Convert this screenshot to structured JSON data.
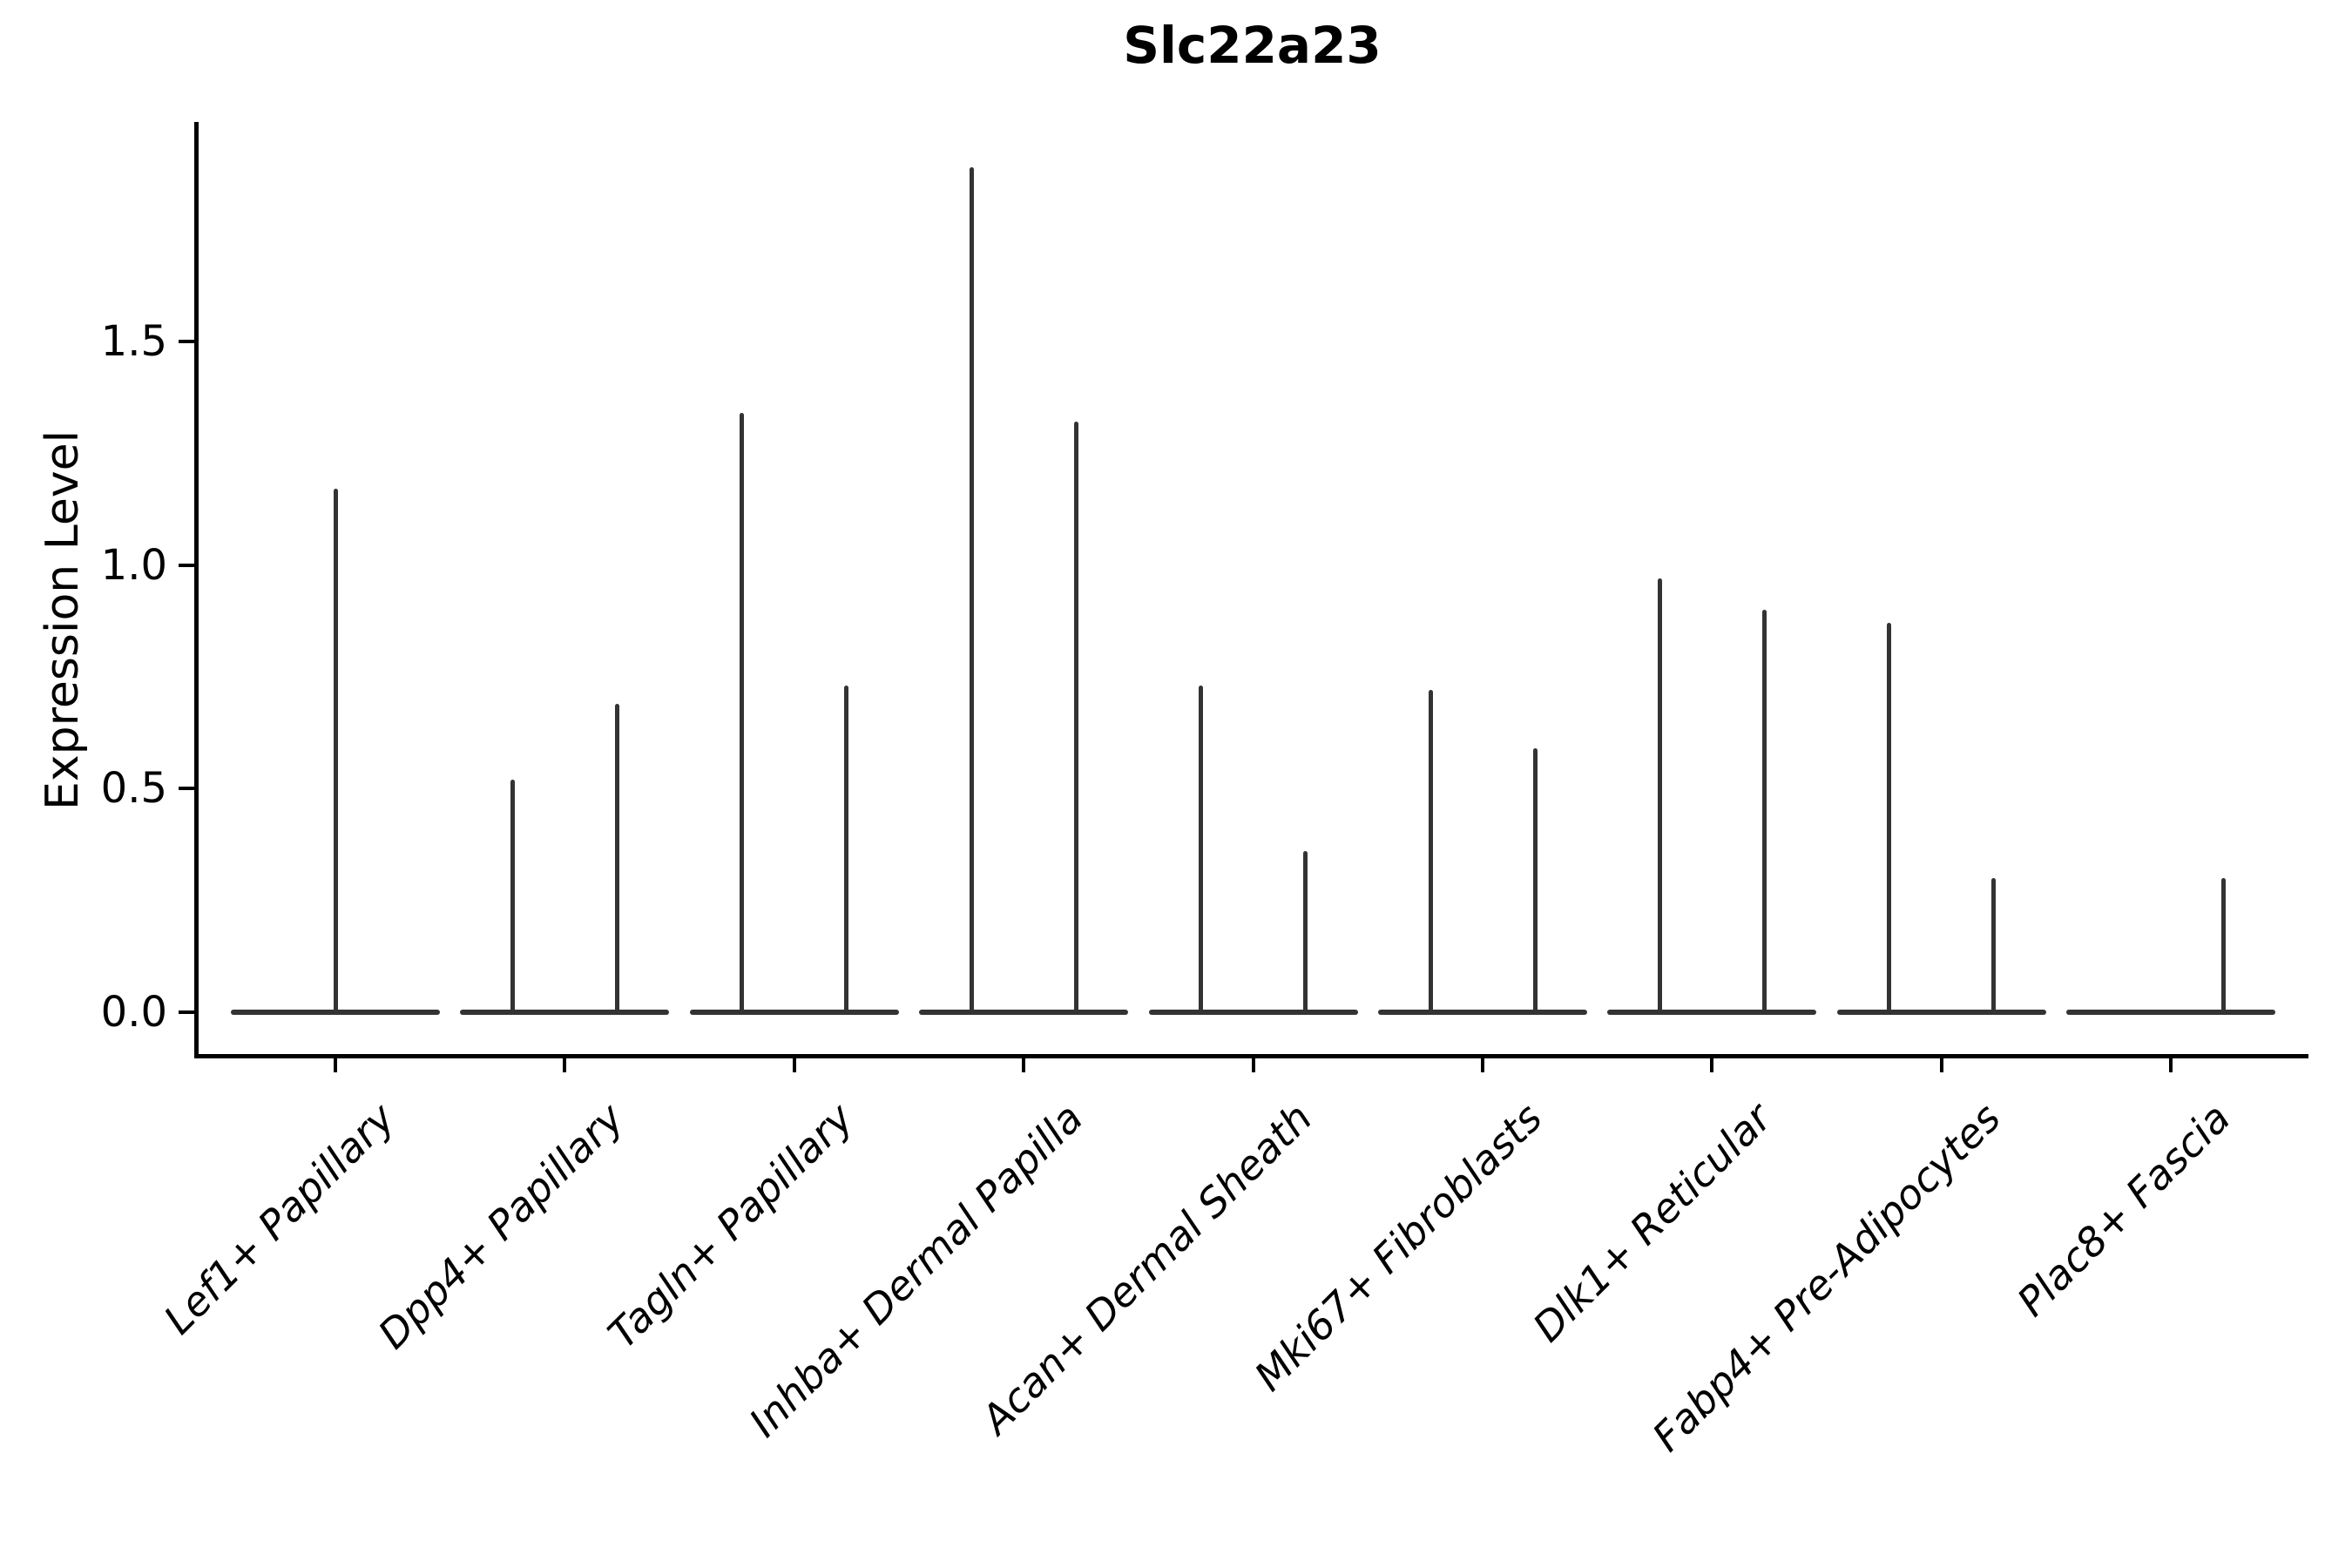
{
  "figure": {
    "title": "Slc22a23",
    "background": "#ffffff"
  },
  "chart_data": {
    "type": "violin",
    "title": "Slc22a23",
    "xlabel": "",
    "ylabel": "Expression Level",
    "ylim": [
      -0.07,
      1.99
    ],
    "yticks": [
      0.0,
      0.5,
      1.0,
      1.5
    ],
    "ytick_labels": [
      "0.0",
      "0.5",
      "1.0",
      "1.5"
    ],
    "grid": false,
    "legend": "none",
    "line_color": "#333333",
    "axis_color": "#000000",
    "categories": [
      "Lef1+ Papillary",
      "Dpp4+ Papillary",
      "Tagln+ Papillary",
      "Inhba+ Dermal Papilla",
      "Acan+ Dermal Sheath",
      "Mki67+ Fibroblasts",
      "Dlk1+ Reticular",
      "Fabp4+ Pre-Adipocytes",
      "Plac8+ Fascia"
    ],
    "violins": [
      {
        "category": "Lef1+ Papillary",
        "spikes": [
          {
            "position": "center",
            "max": 1.17
          }
        ]
      },
      {
        "category": "Dpp4+ Papillary",
        "spikes": [
          {
            "position": "left",
            "max": 0.52
          },
          {
            "position": "right",
            "max": 0.69
          }
        ]
      },
      {
        "category": "Tagln+ Papillary",
        "spikes": [
          {
            "position": "left",
            "max": 1.34
          },
          {
            "position": "right",
            "max": 0.73
          }
        ]
      },
      {
        "category": "Inhba+ Dermal Papilla",
        "spikes": [
          {
            "position": "left",
            "max": 1.89
          },
          {
            "position": "right",
            "max": 1.32
          }
        ]
      },
      {
        "category": "Acan+ Dermal Sheath",
        "spikes": [
          {
            "position": "left",
            "max": 0.73
          },
          {
            "position": "right",
            "max": 0.36
          }
        ]
      },
      {
        "category": "Mki67+ Fibroblasts",
        "spikes": [
          {
            "position": "left",
            "max": 0.72
          },
          {
            "position": "right",
            "max": 0.59
          }
        ]
      },
      {
        "category": "Dlk1+ Reticular",
        "spikes": [
          {
            "position": "left",
            "max": 0.97
          },
          {
            "position": "right",
            "max": 0.9
          }
        ]
      },
      {
        "category": "Fabp4+ Pre-Adipocytes",
        "spikes": [
          {
            "position": "left",
            "max": 0.87
          },
          {
            "position": "right",
            "max": 0.3
          }
        ]
      },
      {
        "category": "Plac8+ Fascia",
        "spikes": [
          {
            "position": "right",
            "max": 0.3
          }
        ]
      }
    ]
  }
}
